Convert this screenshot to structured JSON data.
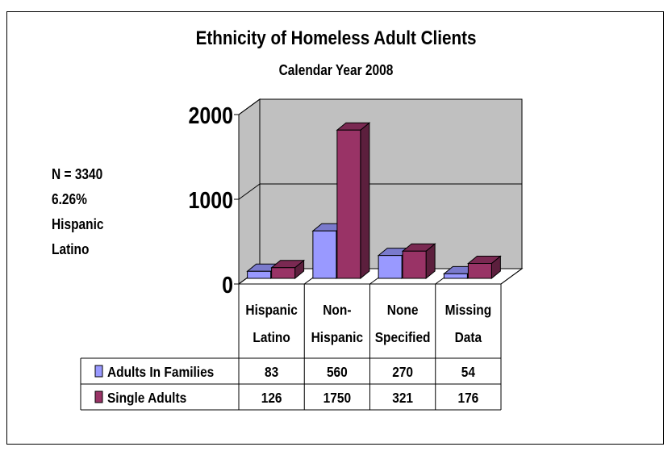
{
  "title": "Ethnicity of Homeless Adult Clients",
  "subtitle": "Calendar Year 2008",
  "note": [
    "N = 3340",
    "6.26%",
    "Hispanic",
    "Latino"
  ],
  "chart_data": {
    "type": "bar",
    "title": "Ethnicity of Homeless Adult Clients",
    "subtitle": "Calendar Year 2008",
    "categories": [
      [
        "Hispanic",
        "Latino"
      ],
      [
        "Non-",
        "Hispanic"
      ],
      [
        "None",
        "Specified"
      ],
      [
        "Missing",
        "Data"
      ]
    ],
    "series": [
      {
        "name": "Adults In Families",
        "values": [
          83,
          560,
          270,
          54
        ],
        "color": "#9999ff"
      },
      {
        "name": "Single Adults",
        "values": [
          126,
          1750,
          321,
          176
        ],
        "color": "#993366"
      }
    ],
    "yticks": [
      "0",
      "1000",
      "2000"
    ],
    "ylim": [
      0,
      2000
    ],
    "grid": true,
    "three_d": true,
    "data_table": true
  }
}
